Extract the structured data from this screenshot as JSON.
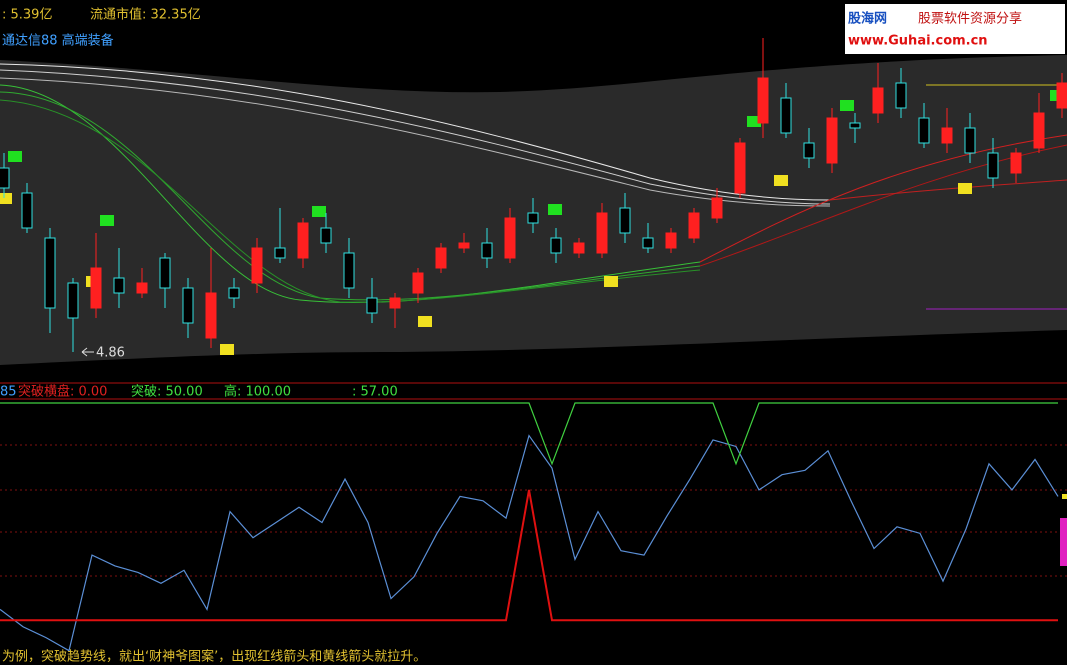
{
  "header": {
    "cap_total": ": 5.39亿",
    "cap_float": "流通市值: 32.35亿",
    "software": "通达信88 高端装备"
  },
  "logo": {
    "name": "股海网",
    "slogan": "股票软件资源分享",
    "url": "www.Guhai.com.cn"
  },
  "indicator_bar": {
    "prefix": "85",
    "flat_breakout": "突破横盘: 0.00",
    "breakout": "突破: 50.00",
    "high": "高: 100.00",
    "value": ": 57.00"
  },
  "caption": "为例，突破趋势线，就出‘财神爷图案’，出现红线箭头和黄线箭头就拉升。",
  "chart_data": [
    {
      "type": "candlestick",
      "low_label": "4.86",
      "up_color": "#ff2020",
      "down_color": "#30e0e0",
      "ylim": [
        4.8,
        8.2
      ],
      "open": [
        6.7,
        6.45,
        6.0,
        5.55,
        5.3,
        5.6,
        5.45,
        5.8,
        5.5,
        5.0,
        5.5,
        5.55,
        5.9,
        5.8,
        6.1,
        5.85,
        5.4,
        5.3,
        5.45,
        5.7,
        5.9,
        5.95,
        5.8,
        6.25,
        6.0,
        5.85,
        5.85,
        6.3,
        6.0,
        5.9,
        6.0,
        6.2,
        6.45,
        7.15,
        7.4,
        6.95,
        6.75,
        7.15,
        7.25,
        7.55,
        7.2,
        6.95,
        7.1,
        6.85,
        6.65,
        6.9,
        7.3
      ],
      "high": [
        6.85,
        6.55,
        6.1,
        5.6,
        6.05,
        5.9,
        5.7,
        5.85,
        5.6,
        5.9,
        5.6,
        6.0,
        6.3,
        6.2,
        6.25,
        6.0,
        5.6,
        5.45,
        5.7,
        5.95,
        6.05,
        6.1,
        6.3,
        6.4,
        6.1,
        6.0,
        6.35,
        6.45,
        6.15,
        6.1,
        6.3,
        6.5,
        7.0,
        8.0,
        7.55,
        7.1,
        7.3,
        7.25,
        7.75,
        7.7,
        7.35,
        7.3,
        7.25,
        7.0,
        6.9,
        7.45,
        7.65
      ],
      "low": [
        6.4,
        6.05,
        5.05,
        4.86,
        5.2,
        5.3,
        5.4,
        5.3,
        5.0,
        4.9,
        5.3,
        5.45,
        5.75,
        5.7,
        5.85,
        5.4,
        5.15,
        5.1,
        5.35,
        5.65,
        5.85,
        5.7,
        5.75,
        6.05,
        5.75,
        5.8,
        5.8,
        5.95,
        5.85,
        5.85,
        5.95,
        6.15,
        6.4,
        7.0,
        7.0,
        6.7,
        6.65,
        6.95,
        7.15,
        7.2,
        6.9,
        6.85,
        6.75,
        6.5,
        6.55,
        6.85,
        7.2
      ],
      "close": [
        6.5,
        6.1,
        5.3,
        5.2,
        5.7,
        5.45,
        5.55,
        5.5,
        5.15,
        5.45,
        5.4,
        5.9,
        5.8,
        6.15,
        5.95,
        5.5,
        5.25,
        5.4,
        5.65,
        5.9,
        5.95,
        5.8,
        6.2,
        6.15,
        5.85,
        5.95,
        6.25,
        6.05,
        5.9,
        6.05,
        6.25,
        6.4,
        6.95,
        7.6,
        7.05,
        6.8,
        7.2,
        7.1,
        7.5,
        7.3,
        6.95,
        7.1,
        6.85,
        6.6,
        6.85,
        7.25,
        7.55
      ]
    },
    {
      "type": "line",
      "ylim": [
        -16,
        100
      ],
      "series": [
        {
          "color": "#5b8fd6",
          "values": [
            5,
            -3,
            -8,
            -14,
            30,
            25,
            22,
            17,
            23,
            5,
            50,
            38,
            45,
            52,
            45,
            65,
            45,
            10,
            20,
            40,
            57,
            55,
            47,
            85,
            70,
            28,
            50,
            32,
            30,
            48,
            65,
            83,
            80,
            60,
            67,
            69,
            78,
            55,
            33,
            43,
            40,
            18,
            42,
            72,
            60,
            74,
            57
          ]
        },
        {
          "color": "#40d040",
          "values": [
            100,
            100,
            100,
            100,
            100,
            100,
            100,
            100,
            100,
            100,
            100,
            100,
            100,
            100,
            100,
            100,
            100,
            100,
            100,
            100,
            100,
            100,
            100,
            100,
            72,
            100,
            100,
            100,
            100,
            100,
            100,
            100,
            72,
            100,
            100,
            100,
            100,
            100,
            100,
            100,
            100,
            100,
            100,
            100,
            100,
            100,
            100
          ]
        },
        {
          "color": "#e01010",
          "values": [
            0,
            0,
            0,
            0,
            0,
            0,
            0,
            0,
            0,
            0,
            0,
            0,
            0,
            0,
            0,
            0,
            0,
            0,
            0,
            0,
            0,
            0,
            0,
            60,
            0,
            0,
            0,
            0,
            0,
            0,
            0,
            0,
            0,
            0,
            0,
            0,
            0,
            0,
            0,
            0,
            0,
            0,
            0,
            0,
            0,
            0,
            0
          ]
        }
      ]
    }
  ]
}
